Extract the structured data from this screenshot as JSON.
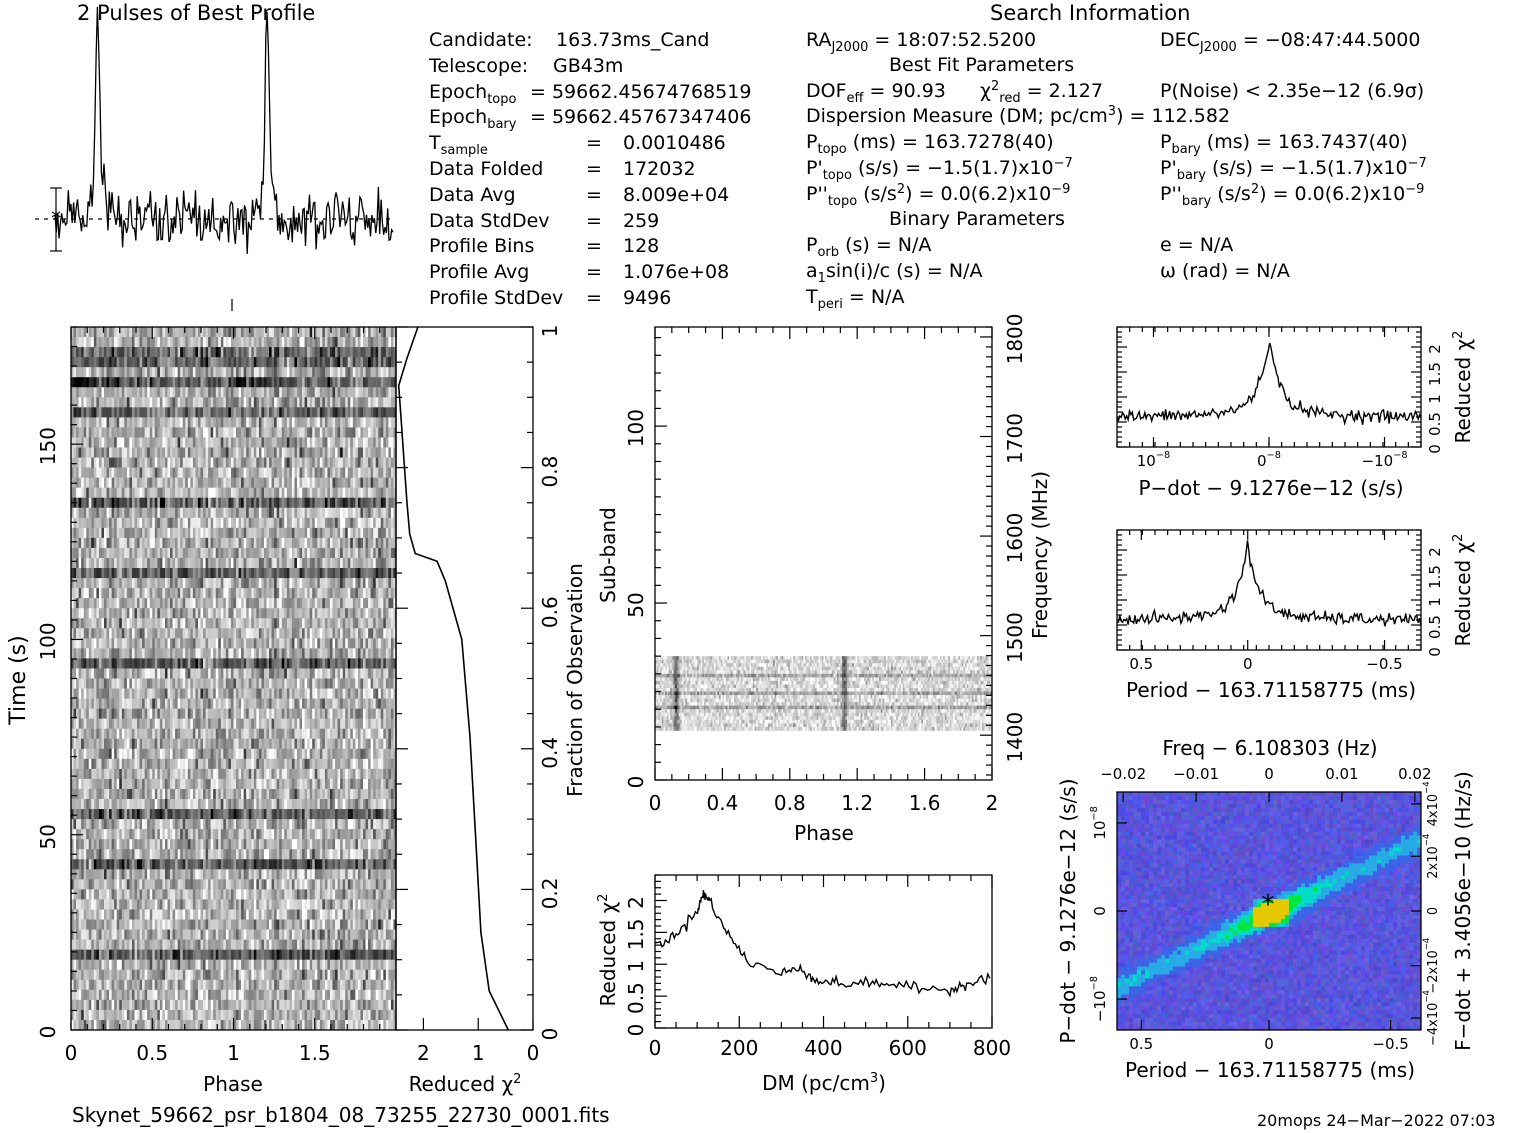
{
  "header": {
    "left_title": "2 Pulses of Best Profile",
    "right_title": "Search Information"
  },
  "info": {
    "col1": [
      {
        "label": "Candidate:",
        "value": "163.73ms_Cand"
      },
      {
        "label": "Telescope:",
        "value": "GB43m"
      },
      {
        "label": "Epoch",
        "sub": "topo",
        "value": "= 59662.45674768519"
      },
      {
        "label": "Epoch",
        "sub": "bary",
        "value": "= 59662.45767347406"
      },
      {
        "label": "T",
        "sub": "sample",
        "value": "=",
        "value2": "0.0010486"
      },
      {
        "label": "Data Folded",
        "value": "=",
        "value2": "172032"
      },
      {
        "label": "Data Avg",
        "value": "=",
        "value2": "8.009e+04"
      },
      {
        "label": "Data StdDev",
        "value": "=",
        "value2": "259"
      },
      {
        "label": "Profile Bins",
        "value": "=",
        "value2": "128"
      },
      {
        "label": "Profile Avg",
        "value": "=",
        "value2": "1.076e+08"
      },
      {
        "label": "Profile StdDev",
        "value": "=",
        "value2": "9496"
      }
    ],
    "ra": {
      "label": "RA",
      "sub": "J2000",
      "value": "= 18:07:52.5200"
    },
    "dec": {
      "label": "DEC",
      "sub": "J2000",
      "value": "= −08:47:44.5000"
    },
    "best_fit_title": "Best Fit Parameters",
    "dof": {
      "label": "DOF",
      "sub": "eff",
      "value": "= 90.93"
    },
    "chi": {
      "label": "χ",
      "sup": "2",
      "sub": "red",
      "value": "= 2.127"
    },
    "pnoise": "P(Noise) < 2.35e−12   (6.9σ)",
    "dm": {
      "label": "Dispersion Measure (DM; pc/cm",
      "sup": "3",
      "value": ") = 112.582"
    },
    "ptopo": {
      "label": "P",
      "sub": "topo",
      "value": "(ms) =  163.7278(40)"
    },
    "pbary": {
      "label": "P",
      "sub": "bary",
      "value": "(ms) =  163.7437(40)"
    },
    "pdtopo": {
      "label": "P'",
      "sub": "topo",
      "value": "(s/s) = −1.5(1.7)x10",
      "sup": "−7"
    },
    "pdbary": {
      "label": "P'",
      "sub": "bary",
      "value": "(s/s) = −1.5(1.7)x10",
      "sup": "−7"
    },
    "pddtopo": {
      "label": "P''",
      "sub": "topo",
      "value": "(s/s",
      "sup": "2",
      "value2": ") = 0.0(6.2)x10",
      "sup2": "−9"
    },
    "pddbary": {
      "label": "P''",
      "sub": "bary",
      "value": "(s/s",
      "sup": "2",
      "value2": ") = 0.0(6.2)x10",
      "sup2": "−9"
    },
    "binary_title": "Binary Parameters",
    "porb": {
      "label": "P",
      "sub": "orb",
      "value": "(s) = N/A"
    },
    "a1": {
      "label": "a",
      "sub": "1",
      "value": "sin(i)/c (s) = N/A"
    },
    "tperi": {
      "label": "T",
      "sub": "peri",
      "value": "= N/A"
    },
    "ecc": "e = N/A",
    "omega": "ω (rad) = N/A"
  },
  "footer": {
    "filename": "Skynet_59662_psr_b1804_08_73255_22730_0001.fits",
    "stamp": "20mops 24−Mar−2022 07:03"
  },
  "colors": {
    "ink": "#000000",
    "cmap_low": "#4b4bd8",
    "cmap_high": "#00e000"
  },
  "chart_data": [
    {
      "id": "profile",
      "type": "line",
      "title": "2 Pulses of Best Profile",
      "x_range": [
        0,
        2
      ],
      "peaks_at_phase": [
        0.25,
        1.25
      ],
      "bins_per_pulse": 128
    },
    {
      "id": "time_phase",
      "type": "heatmap",
      "xlabel": "Phase",
      "ylabel": "Time (s)",
      "xlim": [
        0,
        2
      ],
      "ylim": [
        0,
        180
      ],
      "xticks": [
        "0",
        "0.5",
        "1",
        "1.5"
      ],
      "yticks": [
        "0",
        "50",
        "100",
        "150"
      ],
      "right_label": "Fraction of Observation",
      "right_ticks": [
        "0",
        "0.2",
        "0.4",
        "0.6",
        "0.8",
        "1"
      ]
    },
    {
      "id": "time_chi2",
      "type": "line",
      "xlabel": "Reduced χ",
      "xlabel_sup": "2",
      "xticks": [
        "2",
        "1",
        "0"
      ],
      "xlim": [
        2.5,
        0
      ],
      "points": [
        [
          0.45,
          0
        ],
        [
          0.8,
          10
        ],
        [
          0.95,
          25
        ],
        [
          1.05,
          50
        ],
        [
          1.15,
          75
        ],
        [
          1.3,
          100
        ],
        [
          1.5,
          110
        ],
        [
          1.6,
          115
        ],
        [
          1.75,
          120
        ],
        [
          2.15,
          122
        ],
        [
          2.25,
          127
        ],
        [
          2.3,
          135
        ],
        [
          2.35,
          145
        ],
        [
          2.4,
          155
        ],
        [
          2.45,
          165
        ],
        [
          2.3,
          172
        ],
        [
          2.1,
          180
        ]
      ]
    },
    {
      "id": "subband_phase",
      "type": "heatmap",
      "xlabel": "Phase",
      "ylabel": "Sub-band",
      "xlim": [
        0,
        2
      ],
      "ylim": [
        0,
        128
      ],
      "xticks": [
        "0",
        "0.4",
        "0.8",
        "1.2",
        "1.6",
        "2"
      ],
      "yticks": [
        "0",
        "50",
        "100"
      ],
      "right_label": "Frequency (MHz)",
      "right_ticks": [
        "1400",
        "1500",
        "1600",
        "1700",
        "1800"
      ],
      "band_range": [
        14,
        35
      ]
    },
    {
      "id": "dm_chi2",
      "type": "line",
      "xlabel": "DM (pc/cm",
      "xlabel_sup": "3",
      "xlabel_end": ")",
      "ylabel": "Reduced χ",
      "ylabel_sup": "2",
      "xlim": [
        0,
        800
      ],
      "ylim": [
        0,
        2.4
      ],
      "xticks": [
        "0",
        "200",
        "400",
        "600",
        "800"
      ],
      "yticks": [
        "0",
        "0.5",
        "1",
        "1.5",
        "2"
      ],
      "points": [
        [
          0,
          1.3
        ],
        [
          50,
          1.45
        ],
        [
          100,
          1.85
        ],
        [
          115,
          2.1
        ],
        [
          130,
          2.0
        ],
        [
          170,
          1.5
        ],
        [
          220,
          1.05
        ],
        [
          300,
          0.85
        ],
        [
          345,
          0.95
        ],
        [
          380,
          0.75
        ],
        [
          430,
          0.7
        ],
        [
          500,
          0.7
        ],
        [
          550,
          0.7
        ],
        [
          620,
          0.62
        ],
        [
          700,
          0.6
        ],
        [
          740,
          0.7
        ],
        [
          800,
          0.8
        ]
      ]
    },
    {
      "id": "pdot_chi2",
      "type": "line",
      "xlabel": "P−dot − 9.1276e−12 (s/s)",
      "ylabel": "Reduced χ",
      "ylabel_sup": "2",
      "ylim": [
        0,
        2.4
      ],
      "yticks": [
        "0",
        "0.5",
        "1",
        "1.5",
        "2"
      ],
      "xticks": [
        "10",
        "0",
        "−10"
      ],
      "xticks_sup": "−8",
      "peak": 2.2
    },
    {
      "id": "period_chi2",
      "type": "line",
      "xlabel": "Period − 163.71158775 (ms)",
      "ylabel": "Reduced χ",
      "ylabel_sup": "2",
      "xlim": [
        0.6,
        -0.55
      ],
      "ylim": [
        0,
        2.4
      ],
      "xticks": [
        "0.5",
        "0",
        "−0.5"
      ],
      "yticks": [
        "0",
        "0.5",
        "1",
        "1.5",
        "2"
      ],
      "peak": 2.15
    },
    {
      "id": "p_pdot",
      "type": "heatmap",
      "top_label": "Freq − 6.108303 (Hz)",
      "top_ticks": [
        "−0.02",
        "−0.01",
        "0",
        "0.01",
        "0.02"
      ],
      "xlabel": "Period − 163.71158775 (ms)",
      "xticks": [
        "0.5",
        "0",
        "−0.5"
      ],
      "ylabel": "P−dot − 9.1276e−12 (s/s)",
      "yticks": [
        "10",
        "0",
        "−10"
      ],
      "yticks_sup": "−8",
      "right_label": "F−dot + 3.4056e−10 (Hz/s)",
      "right_ticks": [
        "−4x10",
        "−2x10",
        "0",
        "2x10",
        "4x10"
      ],
      "right_ticks_sup": "−4"
    }
  ]
}
